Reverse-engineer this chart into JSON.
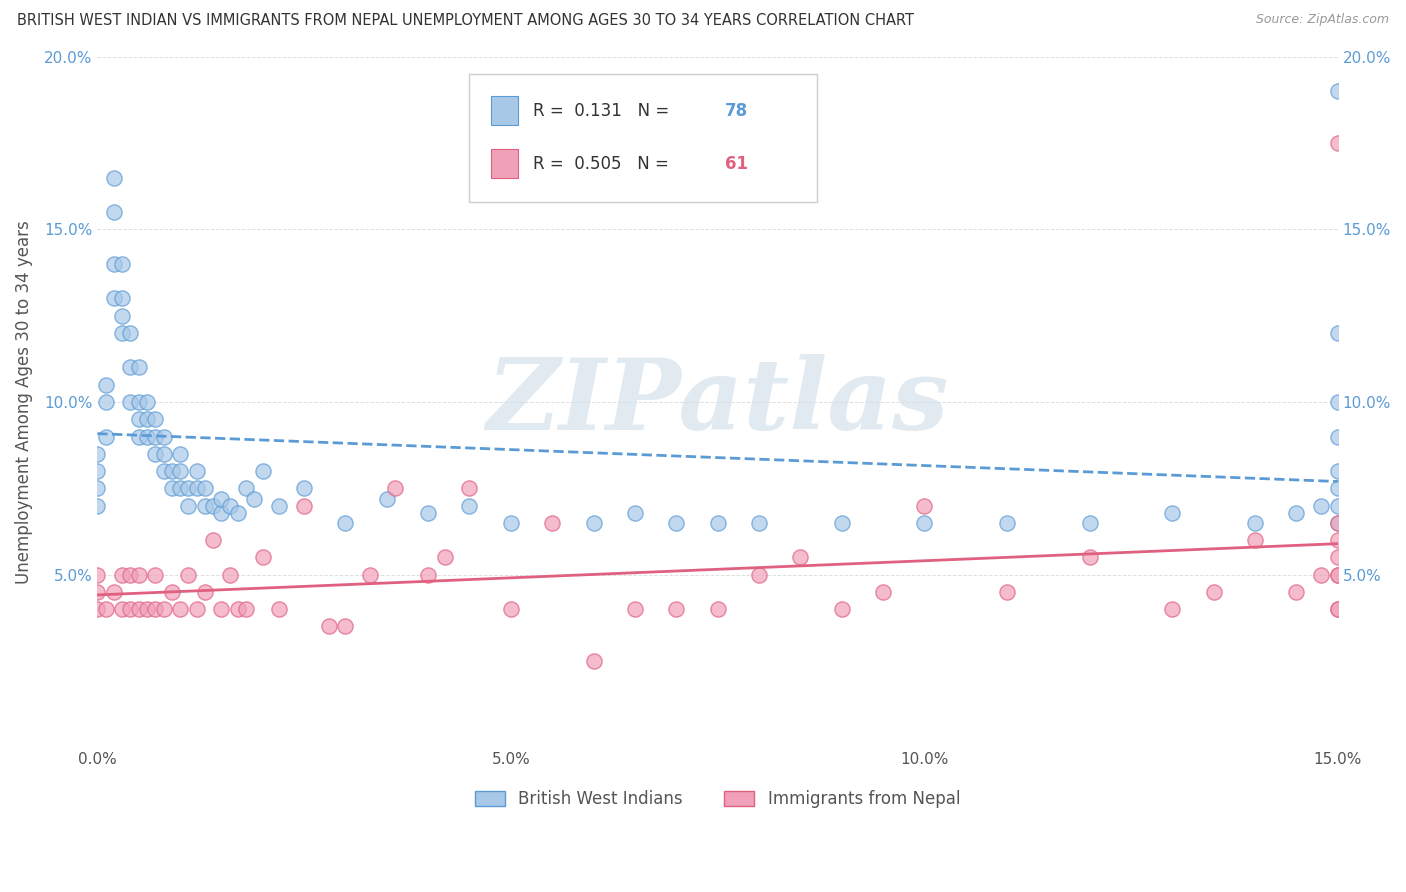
{
  "title": "BRITISH WEST INDIAN VS IMMIGRANTS FROM NEPAL UNEMPLOYMENT AMONG AGES 30 TO 34 YEARS CORRELATION CHART",
  "source": "Source: ZipAtlas.com",
  "ylabel": "Unemployment Among Ages 30 to 34 years",
  "xlim": [
    0,
    0.15
  ],
  "ylim": [
    0,
    0.2
  ],
  "xticks": [
    0.0,
    0.05,
    0.1,
    0.15
  ],
  "xtick_labels": [
    "0.0%",
    "5.0%",
    "10.0%",
    "15.0%"
  ],
  "yticks": [
    0.0,
    0.05,
    0.1,
    0.15,
    0.2
  ],
  "ytick_labels": [
    "",
    "5.0%",
    "10.0%",
    "15.0%",
    "20.0%"
  ],
  "series1_label": "British West Indians",
  "series1_color": "#a8c8e8",
  "series1_line_color": "#5b9bd5",
  "series1_R": "0.131",
  "series1_N": "78",
  "series2_label": "Immigrants from Nepal",
  "series2_color": "#f0a0b8",
  "series2_line_color": "#e06080",
  "series2_R": "0.505",
  "series2_N": "61",
  "watermark": "ZIPatlas",
  "background_color": "#ffffff",
  "grid_color": "#e0e0e0",
  "series1_x": [
    0.0,
    0.0,
    0.0,
    0.0,
    0.001,
    0.001,
    0.001,
    0.002,
    0.002,
    0.002,
    0.002,
    0.003,
    0.003,
    0.003,
    0.003,
    0.004,
    0.004,
    0.004,
    0.005,
    0.005,
    0.005,
    0.005,
    0.006,
    0.006,
    0.006,
    0.007,
    0.007,
    0.007,
    0.008,
    0.008,
    0.008,
    0.009,
    0.009,
    0.01,
    0.01,
    0.01,
    0.011,
    0.011,
    0.012,
    0.012,
    0.013,
    0.013,
    0.014,
    0.015,
    0.015,
    0.016,
    0.017,
    0.018,
    0.019,
    0.02,
    0.022,
    0.025,
    0.03,
    0.035,
    0.04,
    0.045,
    0.05,
    0.06,
    0.065,
    0.07,
    0.075,
    0.08,
    0.09,
    0.1,
    0.11,
    0.12,
    0.13,
    0.14,
    0.145,
    0.148,
    0.15,
    0.15,
    0.15,
    0.15,
    0.15,
    0.15,
    0.15,
    0.15
  ],
  "series1_y": [
    0.07,
    0.075,
    0.08,
    0.085,
    0.09,
    0.1,
    0.105,
    0.13,
    0.14,
    0.155,
    0.165,
    0.12,
    0.125,
    0.13,
    0.14,
    0.1,
    0.11,
    0.12,
    0.09,
    0.095,
    0.1,
    0.11,
    0.09,
    0.095,
    0.1,
    0.085,
    0.09,
    0.095,
    0.08,
    0.085,
    0.09,
    0.075,
    0.08,
    0.075,
    0.08,
    0.085,
    0.07,
    0.075,
    0.075,
    0.08,
    0.07,
    0.075,
    0.07,
    0.068,
    0.072,
    0.07,
    0.068,
    0.075,
    0.072,
    0.08,
    0.07,
    0.075,
    0.065,
    0.072,
    0.068,
    0.07,
    0.065,
    0.065,
    0.068,
    0.065,
    0.065,
    0.065,
    0.065,
    0.065,
    0.065,
    0.065,
    0.068,
    0.065,
    0.068,
    0.07,
    0.065,
    0.07,
    0.075,
    0.08,
    0.09,
    0.1,
    0.12,
    0.19
  ],
  "series2_x": [
    0.0,
    0.0,
    0.0,
    0.001,
    0.002,
    0.003,
    0.003,
    0.004,
    0.004,
    0.005,
    0.005,
    0.006,
    0.007,
    0.007,
    0.008,
    0.009,
    0.01,
    0.011,
    0.012,
    0.013,
    0.014,
    0.015,
    0.016,
    0.017,
    0.018,
    0.02,
    0.022,
    0.025,
    0.028,
    0.03,
    0.033,
    0.036,
    0.04,
    0.042,
    0.045,
    0.05,
    0.055,
    0.06,
    0.065,
    0.07,
    0.075,
    0.08,
    0.085,
    0.09,
    0.095,
    0.1,
    0.11,
    0.12,
    0.13,
    0.135,
    0.14,
    0.145,
    0.148,
    0.15,
    0.15,
    0.15,
    0.15,
    0.15,
    0.15,
    0.15,
    0.15
  ],
  "series2_y": [
    0.04,
    0.045,
    0.05,
    0.04,
    0.045,
    0.04,
    0.05,
    0.04,
    0.05,
    0.04,
    0.05,
    0.04,
    0.04,
    0.05,
    0.04,
    0.045,
    0.04,
    0.05,
    0.04,
    0.045,
    0.06,
    0.04,
    0.05,
    0.04,
    0.04,
    0.055,
    0.04,
    0.07,
    0.035,
    0.035,
    0.05,
    0.075,
    0.05,
    0.055,
    0.075,
    0.04,
    0.065,
    0.025,
    0.04,
    0.04,
    0.04,
    0.05,
    0.055,
    0.04,
    0.045,
    0.07,
    0.045,
    0.055,
    0.04,
    0.045,
    0.06,
    0.045,
    0.05,
    0.04,
    0.05,
    0.06,
    0.065,
    0.055,
    0.04,
    0.175,
    0.05
  ]
}
